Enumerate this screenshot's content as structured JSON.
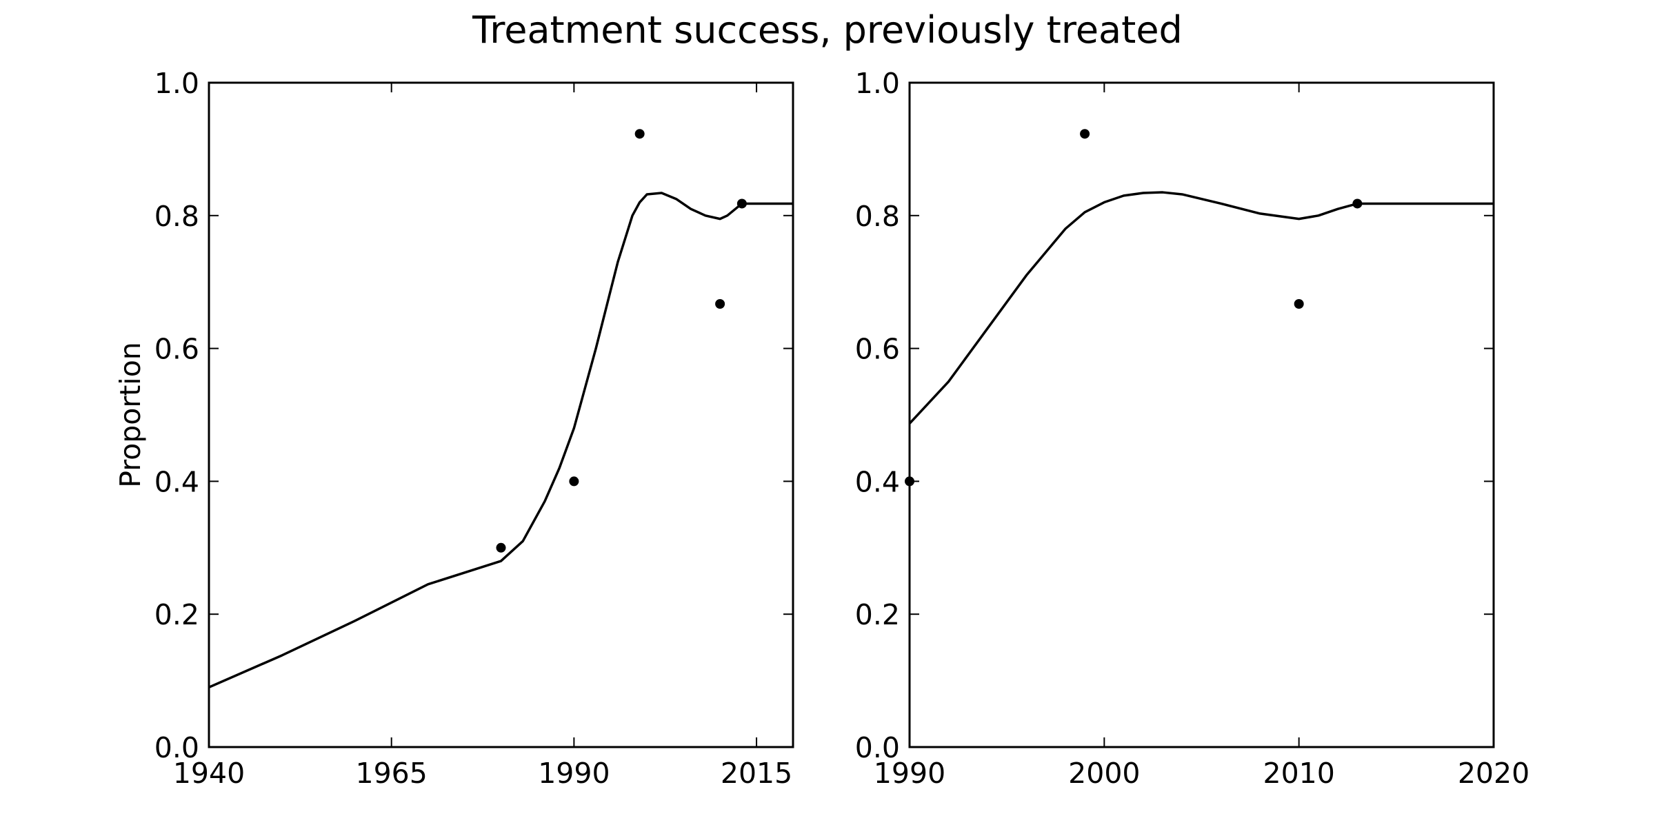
{
  "chart_data": {
    "title": "Treatment success, previously treated",
    "panels": [
      {
        "type": "line",
        "ylabel": "Proportion",
        "xlim": [
          1940,
          2020
        ],
        "ylim": [
          0,
          1
        ],
        "xticks": [
          1940,
          1965,
          1990,
          2015
        ],
        "yticks": [
          0.0,
          0.2,
          0.4,
          0.6,
          0.8,
          1.0
        ],
        "ytick_labels": [
          "0.0",
          "0.2",
          "0.4",
          "0.6",
          "0.8",
          "1.0"
        ],
        "points": [
          {
            "x": 1980,
            "y": 0.3
          },
          {
            "x": 1990,
            "y": 0.4
          },
          {
            "x": 1999,
            "y": 0.923
          },
          {
            "x": 2010,
            "y": 0.667
          },
          {
            "x": 2013,
            "y": 0.818
          }
        ],
        "curve": [
          [
            1940,
            0.09
          ],
          [
            1950,
            0.138
          ],
          [
            1960,
            0.19
          ],
          [
            1970,
            0.245
          ],
          [
            1980,
            0.28
          ],
          [
            1983,
            0.31
          ],
          [
            1986,
            0.37
          ],
          [
            1988,
            0.42
          ],
          [
            1990,
            0.48
          ],
          [
            1993,
            0.6
          ],
          [
            1996,
            0.73
          ],
          [
            1998,
            0.8
          ],
          [
            1999,
            0.82
          ],
          [
            2000,
            0.832
          ],
          [
            2002,
            0.834
          ],
          [
            2004,
            0.825
          ],
          [
            2006,
            0.81
          ],
          [
            2008,
            0.8
          ],
          [
            2010,
            0.795
          ],
          [
            2011,
            0.8
          ],
          [
            2013,
            0.818
          ],
          [
            2020,
            0.818
          ]
        ]
      },
      {
        "type": "line",
        "ylabel": "",
        "xlim": [
          1990,
          2020
        ],
        "ylim": [
          0,
          1
        ],
        "xticks": [
          1990,
          2000,
          2010,
          2020
        ],
        "yticks": [
          0.0,
          0.2,
          0.4,
          0.6,
          0.8,
          1.0
        ],
        "ytick_labels": [
          "0.0",
          "0.2",
          "0.4",
          "0.6",
          "0.8",
          "1.0"
        ],
        "points": [
          {
            "x": 1990,
            "y": 0.4
          },
          {
            "x": 1999,
            "y": 0.923
          },
          {
            "x": 2010,
            "y": 0.667
          },
          {
            "x": 2013,
            "y": 0.818
          }
        ],
        "curve": [
          [
            1990,
            0.487
          ],
          [
            1992,
            0.55
          ],
          [
            1994,
            0.63
          ],
          [
            1996,
            0.71
          ],
          [
            1998,
            0.78
          ],
          [
            1999,
            0.805
          ],
          [
            2000,
            0.82
          ],
          [
            2001,
            0.83
          ],
          [
            2002,
            0.834
          ],
          [
            2003,
            0.835
          ],
          [
            2004,
            0.832
          ],
          [
            2006,
            0.818
          ],
          [
            2008,
            0.803
          ],
          [
            2010,
            0.795
          ],
          [
            2011,
            0.8
          ],
          [
            2012,
            0.81
          ],
          [
            2013,
            0.818
          ],
          [
            2015,
            0.818
          ],
          [
            2020,
            0.818
          ]
        ]
      }
    ]
  }
}
